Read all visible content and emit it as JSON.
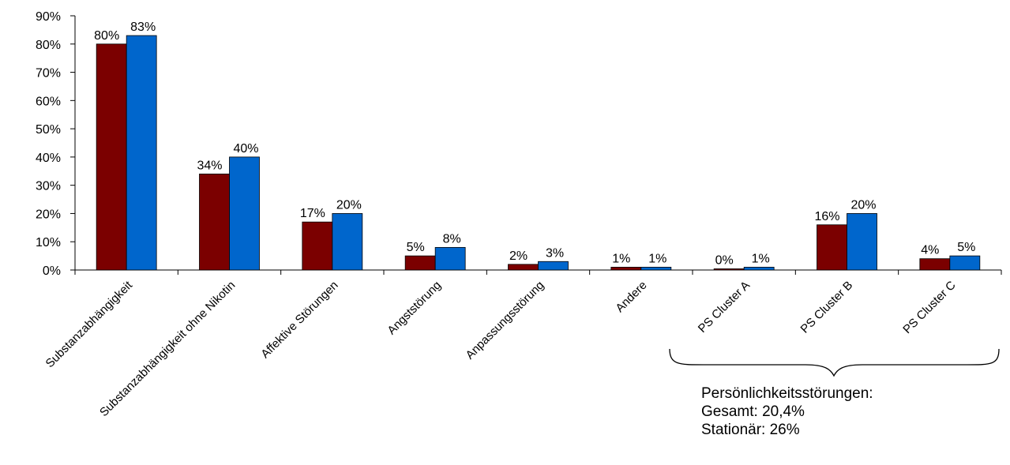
{
  "chart_data": {
    "type": "bar",
    "categories": [
      "Substanzabhängigkeit",
      "Substanzabhängigkeit ohne Nikotin",
      "Affektive Störungen",
      "Angststörung",
      "Anpassungsstörung",
      "Andere",
      "PS Cluster A",
      "PS Cluster B",
      "PS Cluster C"
    ],
    "series": [
      {
        "values": [
          80,
          34,
          17,
          5,
          2,
          1,
          0,
          16,
          4
        ],
        "labels": [
          "80%",
          "34%",
          "17%",
          "5%",
          "2%",
          "1%",
          "0%",
          "16%",
          "4%"
        ],
        "color": "#7b0000"
      },
      {
        "values": [
          83,
          40,
          20,
          8,
          3,
          1,
          1,
          20,
          5
        ],
        "labels": [
          "83%",
          "40%",
          "20%",
          "8%",
          "3%",
          "1%",
          "1%",
          "20%",
          "5%"
        ],
        "color": "#0066cc"
      }
    ],
    "yticks": [
      "0%",
      "10%",
      "20%",
      "30%",
      "40%",
      "50%",
      "60%",
      "70%",
      "80%",
      "90%"
    ],
    "ylim": [
      0,
      90
    ],
    "grid": false,
    "legend": "none"
  },
  "annotation": {
    "title": "Persönlichkeitsstörungen:",
    "line1": "Gesamt: 20,4%",
    "line2": "Stationär: 26%"
  }
}
